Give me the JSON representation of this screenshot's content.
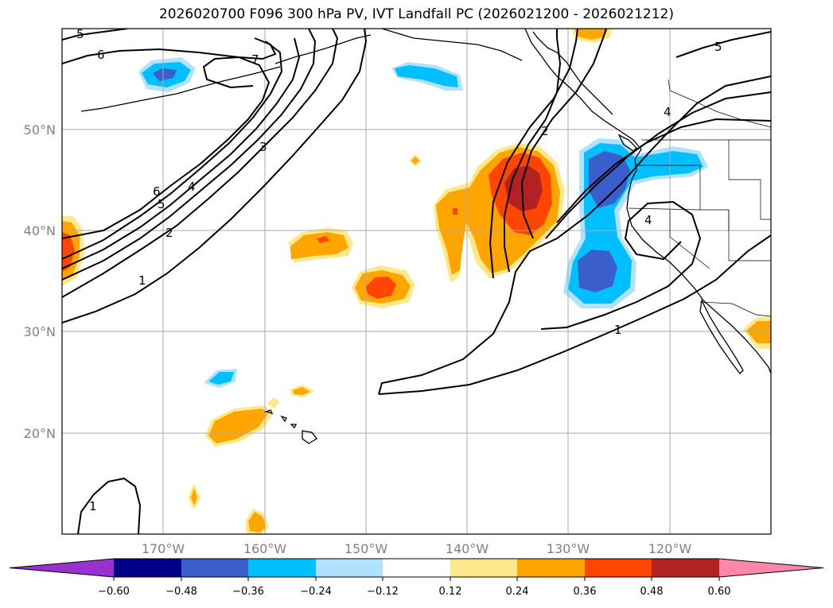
{
  "figure": {
    "title": "2026020700 F096 300 hPa PV, IVT Landfall PC (2026021200 - 2026021212)"
  },
  "map": {
    "longitude_labels": [
      "170°W",
      "160°W",
      "150°W",
      "140°W",
      "130°W",
      "120°W"
    ],
    "latitude_labels": [
      "20°N",
      "30°N",
      "40°N",
      "50°N"
    ],
    "longitude_values": [
      -170,
      -160,
      -150,
      -140,
      -130,
      -120
    ],
    "latitude_values": [
      20,
      30,
      40,
      50
    ],
    "extent": {
      "lon_min": -180,
      "lon_max": -110,
      "lat_min": 10,
      "lat_max": 60
    },
    "gridlines": true,
    "gridline_color": "#aaaaaa"
  },
  "pv_contour_labels": [
    "5",
    "6",
    "7",
    "3",
    "6",
    "5",
    "4",
    "2",
    "1",
    "2",
    "4",
    "1",
    "4",
    "5",
    "1"
  ],
  "colorbar": {
    "tick_labels": [
      "−0.60",
      "−0.48",
      "−0.36",
      "−0.24",
      "−0.12",
      "0.12",
      "0.24",
      "0.36",
      "0.48",
      "0.60"
    ],
    "bins": [
      {
        "color": "#9b30d0"
      },
      {
        "color": "#00008b"
      },
      {
        "color": "#3a5fcd"
      },
      {
        "color": "#00bfff"
      },
      {
        "color": "#b0e2ff"
      },
      {
        "color": "#ffffff"
      },
      {
        "color": "#ffe88a"
      },
      {
        "color": "#ffa500"
      },
      {
        "color": "#ff4500"
      },
      {
        "color": "#b22222"
      },
      {
        "color": "#ff88aa"
      }
    ]
  }
}
